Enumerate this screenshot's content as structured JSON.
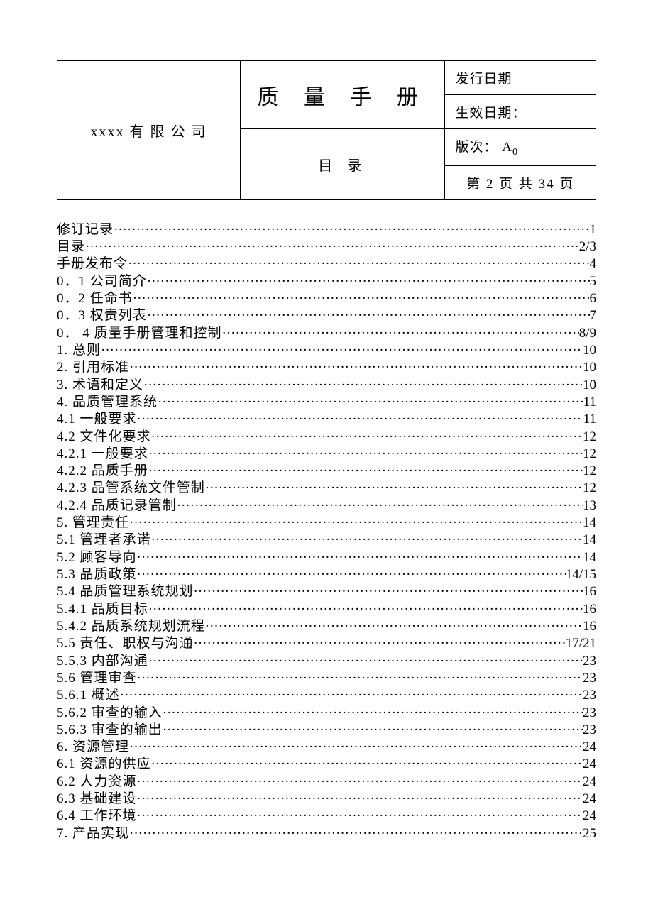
{
  "header": {
    "company": "xxxx 有 限 公 司",
    "title": "质  量  手  册",
    "subtitle": "目 录",
    "issue_date_label": "发行日期",
    "effective_date_label": "生效日期：",
    "version_label": "版次：  A",
    "version_sub": "0",
    "page_info": "第 2 页 共 34 页"
  },
  "toc": [
    {
      "label": "修订记录",
      "page": "1"
    },
    {
      "label": "目录",
      "page": "2/3"
    },
    {
      "label": "手册发布令  ",
      "page": "4"
    },
    {
      "label": "0．1 公司简介",
      "page": "5"
    },
    {
      "label": "0．2 任命书",
      "page": "6"
    },
    {
      "label": "0．3 权责列表",
      "page": "7"
    },
    {
      "label": "0． 4 质量手册管理和控制",
      "page": "8/9"
    },
    {
      "label": "1. 总则    ",
      "page": "10"
    },
    {
      "label": "2. 引用标准  ",
      "page": "10"
    },
    {
      "label": "3. 术语和定义  ",
      "page": "10"
    },
    {
      "label": "4. 品质管理系统  ",
      "page": "11"
    },
    {
      "label": "4.1 一般要求  ",
      "page": "11"
    },
    {
      "label": "4.2 文件化要求  ",
      "page": "12"
    },
    {
      "label": "4.2.1 一般要求",
      "page": "12"
    },
    {
      "label": "4.2.2 品质手册",
      "page": "12"
    },
    {
      "label": "4.2.3 品管系统文件管制",
      "page": "12"
    },
    {
      "label": "4.2.4 品质记录管制",
      "page": "13"
    },
    {
      "label": "5. 管理责任  ",
      "page": "14"
    },
    {
      "label": "5.1 管理者承诺",
      "page": "14"
    },
    {
      "label": "5.2 顾客导向  ",
      "page": "14"
    },
    {
      "label": "5.3 品质政策  ",
      "page": "14/15"
    },
    {
      "label": "5.4 品质管理系统规划  ",
      "page": "16"
    },
    {
      "label": "5.4.1 品质目标",
      "page": "16"
    },
    {
      "label": "5.4.2 品质系统规划流程",
      "page": "16"
    },
    {
      "label": "5.5 责任、职权与沟通",
      "page": "17/21"
    },
    {
      "label": "5.5.3 内部沟通",
      "page": "23"
    },
    {
      "label": "5.6 管理审查  ",
      "page": "23"
    },
    {
      "label": "5.6.1 概述    ",
      "page": "23"
    },
    {
      "label": "5.6.2 审查的输入  ",
      "page": "23"
    },
    {
      "label": "5.6.3 审查的输出  ",
      "page": "23"
    },
    {
      "label": "6. 资源管理  ",
      "page": "24"
    },
    {
      "label": "6.1 资源的供应  ",
      "page": "24"
    },
    {
      "label": "6.2 人力资源  ",
      "page": "24"
    },
    {
      "label": "6.3 基础建设  ",
      "page": "24"
    },
    {
      "label": "6.4 工作环境  ",
      "page": "24"
    },
    {
      "label": "7. 产品实现  ",
      "page": "25"
    }
  ],
  "style": {
    "background_color": "#ffffff",
    "text_color": "#000000",
    "border_color": "#000000",
    "body_fontsize": 19,
    "title_fontsize": 30,
    "line_height": 1.28
  }
}
